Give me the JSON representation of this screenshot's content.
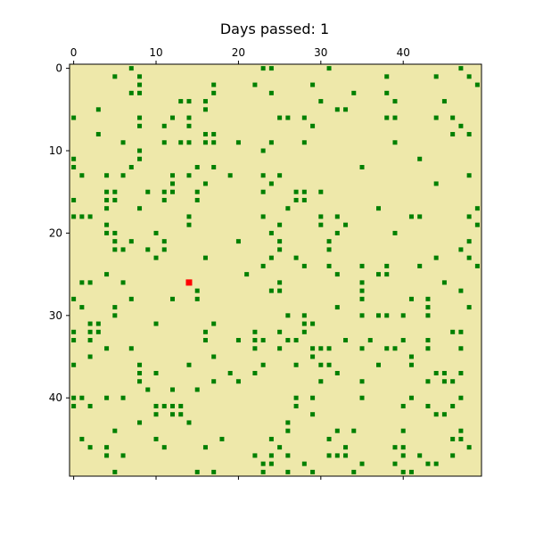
{
  "chart_data": {
    "type": "heatmap",
    "title": "Days passed: 1",
    "grid_size": 50,
    "xlim": [
      -0.5,
      49.5
    ],
    "ylim": [
      49.5,
      -0.5
    ],
    "x_ticks": [
      0,
      10,
      20,
      30,
      40
    ],
    "y_ticks": [
      0,
      10,
      20,
      30,
      40
    ],
    "tick_positions": "top-and-left",
    "grid": false,
    "legend": "none",
    "colors": {
      "background": "#EEE8AA",
      "tree": "#008000",
      "fire": "#FF0000"
    },
    "fire_cells": [
      [
        14,
        26
      ]
    ],
    "tree_cells": [
      [
        7,
        0
      ],
      [
        23,
        0
      ],
      [
        24,
        0
      ],
      [
        31,
        0
      ],
      [
        47,
        0
      ],
      [
        5,
        1
      ],
      [
        8,
        1
      ],
      [
        38,
        1
      ],
      [
        44,
        1
      ],
      [
        48,
        1
      ],
      [
        7,
        3
      ],
      [
        8,
        3
      ],
      [
        17,
        3
      ],
      [
        24,
        3
      ],
      [
        34,
        3
      ],
      [
        38,
        3
      ],
      [
        49,
        2
      ],
      [
        8,
        2
      ],
      [
        17,
        2
      ],
      [
        22,
        2
      ],
      [
        29,
        2
      ],
      [
        13,
        4
      ],
      [
        14,
        4
      ],
      [
        16,
        4
      ],
      [
        30,
        4
      ],
      [
        39,
        4
      ],
      [
        45,
        4
      ],
      [
        3,
        5
      ],
      [
        16,
        5
      ],
      [
        32,
        5
      ],
      [
        33,
        5
      ],
      [
        0,
        6
      ],
      [
        8,
        6
      ],
      [
        12,
        6
      ],
      [
        14,
        6
      ],
      [
        25,
        6
      ],
      [
        26,
        6
      ],
      [
        28,
        6
      ],
      [
        39,
        6
      ],
      [
        38,
        6
      ],
      [
        44,
        6
      ],
      [
        46,
        6
      ],
      [
        8,
        7
      ],
      [
        11,
        7
      ],
      [
        14,
        7
      ],
      [
        29,
        7
      ],
      [
        47,
        7
      ],
      [
        3,
        8
      ],
      [
        16,
        8
      ],
      [
        17,
        8
      ],
      [
        46,
        8
      ],
      [
        48,
        8
      ],
      [
        6,
        9
      ],
      [
        11,
        9
      ],
      [
        13,
        9
      ],
      [
        14,
        9
      ],
      [
        16,
        9
      ],
      [
        17,
        9
      ],
      [
        20,
        9
      ],
      [
        24,
        9
      ],
      [
        28,
        9
      ],
      [
        39,
        9
      ],
      [
        8,
        10
      ],
      [
        23,
        10
      ],
      [
        0,
        11
      ],
      [
        8,
        11
      ],
      [
        42,
        11
      ],
      [
        0,
        12
      ],
      [
        7,
        12
      ],
      [
        15,
        12
      ],
      [
        17,
        12
      ],
      [
        35,
        12
      ],
      [
        1,
        13
      ],
      [
        4,
        13
      ],
      [
        6,
        13
      ],
      [
        12,
        13
      ],
      [
        14,
        13
      ],
      [
        19,
        13
      ],
      [
        23,
        13
      ],
      [
        25,
        13
      ],
      [
        48,
        13
      ],
      [
        12,
        14
      ],
      [
        16,
        14
      ],
      [
        24,
        14
      ],
      [
        44,
        14
      ],
      [
        4,
        15
      ],
      [
        5,
        15
      ],
      [
        9,
        15
      ],
      [
        11,
        15
      ],
      [
        12,
        15
      ],
      [
        15,
        15
      ],
      [
        23,
        15
      ],
      [
        27,
        15
      ],
      [
        28,
        15
      ],
      [
        30,
        15
      ],
      [
        5,
        16
      ],
      [
        4,
        16
      ],
      [
        11,
        16
      ],
      [
        15,
        16
      ],
      [
        27,
        16
      ],
      [
        28,
        16
      ],
      [
        0,
        16
      ],
      [
        8,
        17
      ],
      [
        26,
        17
      ],
      [
        37,
        17
      ],
      [
        49,
        17
      ],
      [
        4,
        17
      ],
      [
        0,
        18
      ],
      [
        1,
        18
      ],
      [
        2,
        18
      ],
      [
        14,
        18
      ],
      [
        23,
        18
      ],
      [
        30,
        18
      ],
      [
        32,
        18
      ],
      [
        41,
        18
      ],
      [
        42,
        18
      ],
      [
        48,
        18
      ],
      [
        4,
        19
      ],
      [
        14,
        19
      ],
      [
        25,
        19
      ],
      [
        30,
        19
      ],
      [
        33,
        19
      ],
      [
        49,
        19
      ],
      [
        4,
        20
      ],
      [
        5,
        20
      ],
      [
        10,
        20
      ],
      [
        24,
        20
      ],
      [
        32,
        20
      ],
      [
        39,
        20
      ],
      [
        5,
        21
      ],
      [
        7,
        21
      ],
      [
        11,
        21
      ],
      [
        20,
        21
      ],
      [
        25,
        21
      ],
      [
        31,
        21
      ],
      [
        48,
        21
      ],
      [
        5,
        22
      ],
      [
        6,
        22
      ],
      [
        9,
        22
      ],
      [
        11,
        22
      ],
      [
        25,
        22
      ],
      [
        31,
        22
      ],
      [
        47,
        22
      ],
      [
        10,
        23
      ],
      [
        16,
        23
      ],
      [
        24,
        23
      ],
      [
        27,
        23
      ],
      [
        44,
        23
      ],
      [
        48,
        23
      ],
      [
        23,
        24
      ],
      [
        28,
        24
      ],
      [
        31,
        24
      ],
      [
        35,
        24
      ],
      [
        38,
        24
      ],
      [
        42,
        24
      ],
      [
        49,
        24
      ],
      [
        4,
        25
      ],
      [
        21,
        25
      ],
      [
        32,
        25
      ],
      [
        37,
        25
      ],
      [
        38,
        25
      ],
      [
        1,
        26
      ],
      [
        2,
        26
      ],
      [
        6,
        26
      ],
      [
        25,
        26
      ],
      [
        35,
        26
      ],
      [
        45,
        26
      ],
      [
        15,
        27
      ],
      [
        24,
        27
      ],
      [
        25,
        27
      ],
      [
        35,
        27
      ],
      [
        47,
        27
      ],
      [
        0,
        28
      ],
      [
        7,
        28
      ],
      [
        12,
        28
      ],
      [
        15,
        28
      ],
      [
        35,
        28
      ],
      [
        41,
        28
      ],
      [
        43,
        28
      ],
      [
        5,
        29
      ],
      [
        1,
        29
      ],
      [
        32,
        29
      ],
      [
        43,
        29
      ],
      [
        48,
        29
      ],
      [
        5,
        30
      ],
      [
        26,
        30
      ],
      [
        28,
        30
      ],
      [
        35,
        30
      ],
      [
        37,
        30
      ],
      [
        38,
        30
      ],
      [
        40,
        30
      ],
      [
        43,
        30
      ],
      [
        2,
        31
      ],
      [
        3,
        31
      ],
      [
        10,
        31
      ],
      [
        17,
        31
      ],
      [
        28,
        31
      ],
      [
        29,
        31
      ],
      [
        0,
        32
      ],
      [
        2,
        32
      ],
      [
        3,
        32
      ],
      [
        16,
        32
      ],
      [
        22,
        32
      ],
      [
        25,
        32
      ],
      [
        28,
        32
      ],
      [
        46,
        32
      ],
      [
        47,
        32
      ],
      [
        0,
        33
      ],
      [
        2,
        33
      ],
      [
        16,
        33
      ],
      [
        20,
        33
      ],
      [
        22,
        33
      ],
      [
        23,
        33
      ],
      [
        26,
        33
      ],
      [
        27,
        33
      ],
      [
        33,
        33
      ],
      [
        36,
        33
      ],
      [
        40,
        33
      ],
      [
        43,
        33
      ],
      [
        4,
        34
      ],
      [
        7,
        34
      ],
      [
        22,
        34
      ],
      [
        25,
        34
      ],
      [
        29,
        34
      ],
      [
        30,
        34
      ],
      [
        31,
        34
      ],
      [
        35,
        34
      ],
      [
        38,
        34
      ],
      [
        39,
        34
      ],
      [
        43,
        34
      ],
      [
        47,
        34
      ],
      [
        2,
        35
      ],
      [
        17,
        35
      ],
      [
        29,
        35
      ],
      [
        41,
        35
      ],
      [
        0,
        36
      ],
      [
        8,
        36
      ],
      [
        14,
        36
      ],
      [
        23,
        36
      ],
      [
        27,
        36
      ],
      [
        30,
        36
      ],
      [
        31,
        36
      ],
      [
        37,
        36
      ],
      [
        41,
        36
      ],
      [
        8,
        37
      ],
      [
        10,
        37
      ],
      [
        19,
        37
      ],
      [
        22,
        37
      ],
      [
        32,
        37
      ],
      [
        44,
        37
      ],
      [
        45,
        37
      ],
      [
        47,
        37
      ],
      [
        8,
        38
      ],
      [
        17,
        38
      ],
      [
        20,
        38
      ],
      [
        30,
        38
      ],
      [
        35,
        38
      ],
      [
        43,
        38
      ],
      [
        45,
        38
      ],
      [
        46,
        38
      ],
      [
        9,
        39
      ],
      [
        12,
        39
      ],
      [
        15,
        39
      ],
      [
        1,
        40
      ],
      [
        0,
        40
      ],
      [
        4,
        40
      ],
      [
        6,
        40
      ],
      [
        27,
        40
      ],
      [
        29,
        40
      ],
      [
        35,
        40
      ],
      [
        41,
        40
      ],
      [
        47,
        40
      ],
      [
        0,
        41
      ],
      [
        2,
        41
      ],
      [
        10,
        41
      ],
      [
        11,
        41
      ],
      [
        12,
        41
      ],
      [
        13,
        41
      ],
      [
        27,
        41
      ],
      [
        40,
        41
      ],
      [
        43,
        41
      ],
      [
        46,
        41
      ],
      [
        10,
        42
      ],
      [
        12,
        42
      ],
      [
        13,
        42
      ],
      [
        29,
        42
      ],
      [
        44,
        42
      ],
      [
        45,
        42
      ],
      [
        8,
        43
      ],
      [
        14,
        43
      ],
      [
        26,
        43
      ],
      [
        26,
        44
      ],
      [
        32,
        44
      ],
      [
        34,
        44
      ],
      [
        40,
        44
      ],
      [
        47,
        44
      ],
      [
        1,
        45
      ],
      [
        10,
        45
      ],
      [
        18,
        45
      ],
      [
        24,
        45
      ],
      [
        31,
        45
      ],
      [
        46,
        45
      ],
      [
        47,
        45
      ],
      [
        5,
        44
      ],
      [
        2,
        46
      ],
      [
        4,
        46
      ],
      [
        11,
        46
      ],
      [
        16,
        46
      ],
      [
        25,
        46
      ],
      [
        33,
        46
      ],
      [
        39,
        46
      ],
      [
        40,
        46
      ],
      [
        48,
        46
      ],
      [
        6,
        47
      ],
      [
        4,
        47
      ],
      [
        22,
        47
      ],
      [
        24,
        47
      ],
      [
        26,
        47
      ],
      [
        31,
        47
      ],
      [
        32,
        47
      ],
      [
        33,
        47
      ],
      [
        40,
        47
      ],
      [
        42,
        47
      ],
      [
        46,
        47
      ],
      [
        23,
        48
      ],
      [
        24,
        48
      ],
      [
        28,
        48
      ],
      [
        35,
        48
      ],
      [
        39,
        48
      ],
      [
        43,
        48
      ],
      [
        44,
        48
      ],
      [
        5,
        49
      ],
      [
        15,
        49
      ],
      [
        17,
        49
      ],
      [
        23,
        49
      ],
      [
        26,
        49
      ],
      [
        29,
        49
      ],
      [
        34,
        49
      ],
      [
        40,
        49
      ],
      [
        41,
        49
      ]
    ]
  }
}
